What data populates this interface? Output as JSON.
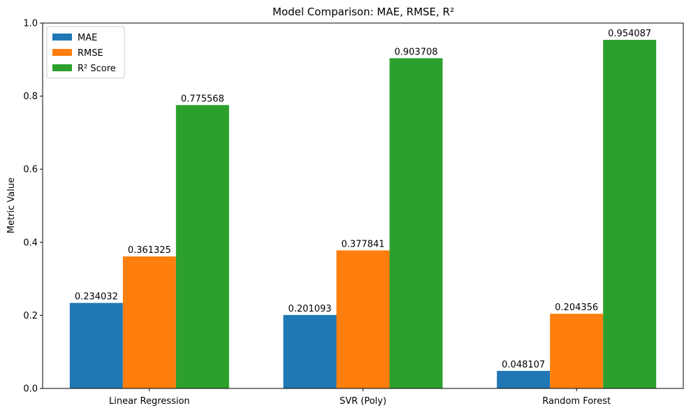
{
  "chart_data": {
    "type": "bar",
    "title": "Model Comparison: MAE, RMSE, R²",
    "xlabel": "",
    "ylabel": "Metric Value",
    "categories": [
      "Linear Regression",
      "SVR (Poly)",
      "Random Forest"
    ],
    "series": [
      {
        "name": "MAE",
        "color": "#1f77b4",
        "values": [
          0.234032,
          0.201093,
          0.048107
        ],
        "labels": [
          "0.234032",
          "0.201093",
          "0.048107"
        ]
      },
      {
        "name": "RMSE",
        "color": "#ff7f0e",
        "values": [
          0.361325,
          0.377841,
          0.204356
        ],
        "labels": [
          "0.361325",
          "0.377841",
          "0.204356"
        ]
      },
      {
        "name": "R² Score",
        "color": "#2ca02c",
        "values": [
          0.775568,
          0.903708,
          0.954087
        ],
        "labels": [
          "0.775568",
          "0.903708",
          "0.954087"
        ]
      }
    ],
    "ylim": [
      0,
      1.0
    ],
    "yticks": [
      0.0,
      0.2,
      0.4,
      0.6,
      0.8,
      1.0
    ],
    "ytick_labels": [
      "0.0",
      "0.2",
      "0.4",
      "0.6",
      "0.8",
      "1.0"
    ],
    "grid": false,
    "legend_position": "top-left"
  }
}
